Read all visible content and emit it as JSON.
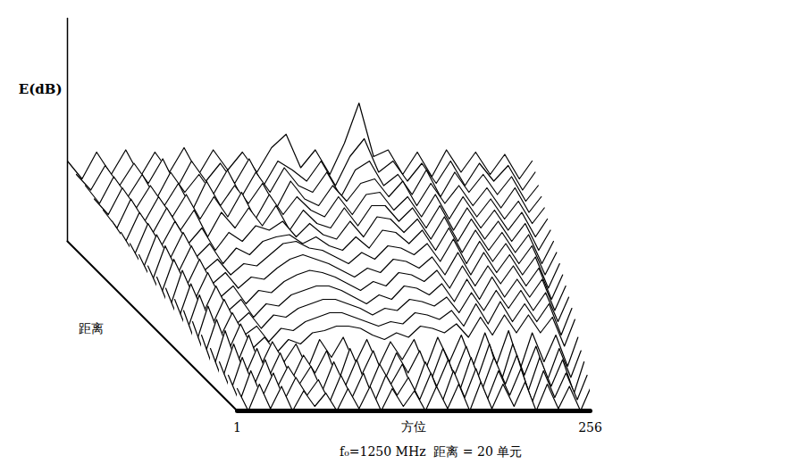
{
  "chart_data": {
    "type": "waterfall",
    "y_label": "E(dB)",
    "x_label": "方位",
    "depth_label": "距离",
    "caption": "f₀=1250 MHz  距离 = 20 单元",
    "xlim": [
      1,
      256
    ],
    "xticks": [
      1,
      256
    ],
    "ylim": [
      0,
      100
    ],
    "tick_labels": "x",
    "grid": false,
    "color": "#000000",
    "x": [
      1,
      9,
      17,
      25,
      33,
      41,
      49,
      57,
      65,
      73,
      81,
      89,
      97,
      105,
      113,
      121,
      129,
      137,
      145,
      153,
      161,
      169,
      177,
      185,
      193,
      201,
      209,
      217,
      225,
      233,
      241,
      249,
      256
    ],
    "series": [
      {
        "values": [
          10,
          0,
          12,
          1,
          11,
          0,
          9,
          2,
          8,
          0,
          10,
          1,
          11,
          0,
          10,
          2,
          9,
          0,
          11,
          1,
          12,
          0,
          13,
          1,
          12,
          2,
          13,
          0,
          12,
          1,
          11,
          0,
          10
        ]
      },
      {
        "values": [
          12,
          0,
          14,
          2,
          13,
          1,
          11,
          3,
          10,
          0,
          12,
          2,
          13,
          0,
          12,
          3,
          11,
          1,
          13,
          0,
          14,
          2,
          15,
          1,
          14,
          3,
          15,
          0,
          14,
          2,
          13,
          1,
          12
        ]
      },
      {
        "values": [
          14,
          1,
          16,
          3,
          15,
          2,
          12,
          4,
          12,
          1,
          14,
          3,
          15,
          1,
          13,
          4,
          13,
          0,
          14,
          3,
          15,
          1,
          16,
          2,
          16,
          4,
          17,
          1,
          16,
          3,
          15,
          0,
          14
        ]
      },
      {
        "values": [
          16,
          2,
          18,
          4,
          16,
          3,
          14,
          2,
          13,
          5,
          15,
          1,
          16,
          4,
          15,
          2,
          14,
          5,
          15,
          2,
          16,
          4,
          17,
          3,
          18,
          1,
          18,
          4,
          17,
          2,
          16,
          3,
          15
        ]
      },
      {
        "values": [
          18,
          3,
          20,
          5,
          18,
          4,
          15,
          6,
          14,
          3,
          16,
          8,
          17,
          5,
          16,
          4,
          15,
          7,
          16,
          3,
          17,
          6,
          18,
          4,
          19,
          5,
          20,
          3,
          19,
          6,
          18,
          4,
          17
        ]
      },
      {
        "values": [
          20,
          5,
          21,
          7,
          19,
          8,
          13,
          6,
          12,
          10,
          15,
          16,
          18,
          18,
          17,
          14,
          12,
          15,
          13,
          18,
          17,
          15,
          19,
          13,
          22,
          14,
          23,
          15,
          23,
          15,
          22,
          9,
          21
        ]
      },
      {
        "values": [
          21,
          6,
          23,
          9,
          20,
          10,
          14,
          7,
          13,
          12,
          16,
          18,
          20,
          20,
          18,
          16,
          14,
          16,
          15,
          20,
          19,
          17,
          21,
          14,
          24,
          15,
          25,
          16,
          24,
          16,
          24,
          10,
          22
        ]
      },
      {
        "values": [
          22,
          8,
          24,
          10,
          22,
          11,
          16,
          9,
          15,
          14,
          18,
          20,
          22,
          22,
          20,
          18,
          15,
          18,
          17,
          22,
          21,
          19,
          23,
          16,
          25,
          17,
          26,
          18,
          26,
          17,
          25,
          12,
          23
        ]
      },
      {
        "values": [
          23,
          9,
          25,
          12,
          24,
          13,
          18,
          10,
          16,
          15,
          20,
          22,
          24,
          24,
          22,
          19,
          16,
          20,
          18,
          24,
          23,
          20,
          25,
          17,
          27,
          18,
          28,
          19,
          27,
          19,
          27,
          13,
          24
        ]
      },
      {
        "values": [
          24,
          10,
          27,
          14,
          26,
          15,
          20,
          12,
          18,
          17,
          22,
          25,
          27,
          26,
          24,
          21,
          18,
          22,
          20,
          26,
          25,
          22,
          27,
          19,
          29,
          20,
          29,
          21,
          29,
          20,
          28,
          14,
          25
        ]
      },
      {
        "values": [
          25,
          12,
          28,
          16,
          28,
          17,
          22,
          15,
          20,
          19,
          24,
          28,
          30,
          28,
          26,
          23,
          20,
          24,
          22,
          28,
          27,
          24,
          29,
          21,
          31,
          21,
          31,
          22,
          30,
          21,
          29,
          15,
          26
        ]
      },
      {
        "values": [
          26,
          14,
          30,
          18,
          30,
          19,
          24,
          17,
          22,
          21,
          26,
          31,
          32,
          29,
          28,
          25,
          22,
          27,
          24,
          30,
          29,
          26,
          31,
          23,
          33,
          22,
          32,
          23,
          31,
          22,
          30,
          17,
          27
        ]
      },
      {
        "values": [
          27,
          16,
          31,
          20,
          32,
          21,
          27,
          18,
          25,
          22,
          28,
          30,
          31,
          27,
          30,
          26,
          24,
          30,
          25,
          33,
          32,
          27,
          33,
          24,
          34,
          23,
          33,
          24,
          32,
          23,
          31,
          18,
          28
        ]
      },
      {
        "values": [
          28,
          18,
          32,
          22,
          33,
          23,
          30,
          20,
          28,
          24,
          31,
          29,
          33,
          26,
          32,
          27,
          25,
          33,
          26,
          35,
          34,
          28,
          34,
          25,
          35,
          24,
          34,
          25,
          33,
          24,
          32,
          20,
          29
        ]
      },
      {
        "values": [
          29,
          20,
          33,
          24,
          35,
          25,
          34,
          22,
          33,
          26,
          35,
          27,
          36,
          25,
          34,
          28,
          26,
          35,
          27,
          36,
          36,
          29,
          35,
          26,
          36,
          25,
          35,
          26,
          34,
          25,
          33,
          22,
          30
        ]
      },
      {
        "values": [
          30,
          22,
          35,
          25,
          36,
          27,
          37,
          26,
          36,
          27,
          38,
          26,
          37,
          28,
          36,
          30,
          27,
          36,
          28,
          37,
          38,
          30,
          36,
          27,
          37,
          26,
          36,
          27,
          35,
          26,
          34,
          24,
          31
        ]
      },
      {
        "values": [
          31,
          24,
          36,
          27,
          37,
          28,
          38,
          26,
          39,
          28,
          37,
          29,
          38,
          27,
          39,
          31,
          28,
          37,
          30,
          38,
          40,
          32,
          39,
          28,
          38,
          29,
          37,
          28,
          36,
          27,
          36,
          25,
          32
        ]
      },
      {
        "values": [
          33,
          25,
          37,
          28,
          38,
          27,
          39,
          30,
          38,
          29,
          40,
          28,
          39,
          30,
          41,
          33,
          30,
          39,
          28,
          40,
          44,
          33,
          38,
          29,
          40,
          28,
          39,
          30,
          38,
          29,
          37,
          26,
          33
        ]
      },
      {
        "values": [
          34,
          27,
          38,
          29,
          39,
          30,
          41,
          28,
          40,
          31,
          39,
          30,
          41,
          29,
          40,
          36,
          31,
          40,
          29,
          42,
          50,
          35,
          40,
          31,
          39,
          30,
          40,
          29,
          39,
          31,
          38,
          27,
          35
        ]
      },
      {
        "values": [
          36,
          28,
          40,
          30,
          41,
          29,
          40,
          31,
          42,
          30,
          41,
          32,
          40,
          31,
          42,
          48,
          33,
          41,
          30,
          44,
          62,
          38,
          41,
          30,
          40,
          29,
          41,
          31,
          40,
          30,
          39,
          28,
          36
        ]
      }
    ]
  }
}
